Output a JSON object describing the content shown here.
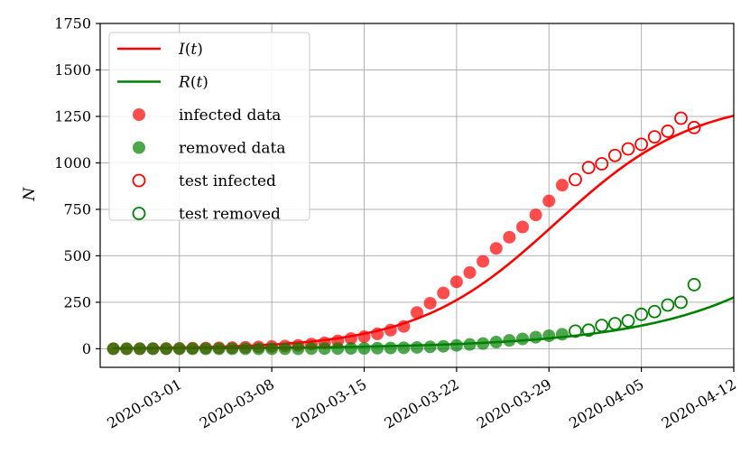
{
  "chart_data": {
    "type": "scatter",
    "title": "",
    "xlabel": "",
    "ylabel": "N",
    "x_start": "2020-02-25",
    "xlim": [
      "2020-02-24",
      "2020-04-12"
    ],
    "ylim": [
      -100,
      1750
    ],
    "xticks": [
      "2020-03-01",
      "2020-03-08",
      "2020-03-15",
      "2020-03-22",
      "2020-03-29",
      "2020-04-05",
      "2020-04-12"
    ],
    "yticks": [
      0,
      250,
      500,
      750,
      1000,
      1250,
      1500,
      1750
    ],
    "grid": true,
    "legend_position": "top-left",
    "colors": {
      "infected": "#ff0000",
      "removed": "#008000"
    },
    "legend": [
      {
        "label": "I(t)",
        "kind": "line",
        "color": "#ff0000"
      },
      {
        "label": "R(t)",
        "kind": "line",
        "color": "#008000"
      },
      {
        "label": "infected data",
        "kind": "filled",
        "color": "#ff0000"
      },
      {
        "label": "removed data",
        "kind": "filled",
        "color": "#008000"
      },
      {
        "label": "test infected",
        "kind": "hollow",
        "color": "#ff0000"
      },
      {
        "label": "test removed",
        "kind": "hollow",
        "color": "#008000"
      }
    ],
    "series": [
      {
        "name": "infected data",
        "kind": "filled",
        "color": "#ff0000",
        "x_day_offset": 0,
        "values": [
          0,
          0,
          0,
          1,
          1,
          2,
          3,
          4,
          5,
          6,
          8,
          10,
          12,
          15,
          18,
          25,
          32,
          42,
          55,
          65,
          80,
          100,
          120,
          195,
          245,
          300,
          360,
          410,
          470,
          540,
          600,
          655,
          720,
          795,
          880
        ]
      },
      {
        "name": "removed data",
        "kind": "filled",
        "color": "#008000",
        "x_day_offset": 0,
        "values": [
          0,
          0,
          0,
          0,
          0,
          0,
          0,
          0,
          0,
          0,
          0,
          0,
          0,
          0,
          0,
          1,
          1,
          1,
          2,
          2,
          3,
          4,
          5,
          7,
          10,
          13,
          18,
          23,
          28,
          36,
          45,
          53,
          62,
          70,
          78
        ]
      },
      {
        "name": "test infected",
        "kind": "hollow",
        "color": "#ff0000",
        "x_day_offset": 35,
        "values": [
          910,
          975,
          995,
          1040,
          1075,
          1100,
          1140,
          1170,
          1240,
          1190
        ]
      },
      {
        "name": "test removed",
        "kind": "hollow",
        "color": "#008000",
        "x_day_offset": 35,
        "values": [
          95,
          100,
          125,
          135,
          150,
          185,
          200,
          235,
          250,
          345
        ]
      },
      {
        "name": "I(t)",
        "kind": "line",
        "color": "#ff0000",
        "model": {
          "type": "logistic",
          "K": 1350,
          "r": 0.19,
          "t0": 33.5
        }
      },
      {
        "name": "R(t)",
        "kind": "line",
        "color": "#008000",
        "model": {
          "type": "exponential",
          "scale": 1.3,
          "rate": 0.114
        }
      }
    ]
  }
}
